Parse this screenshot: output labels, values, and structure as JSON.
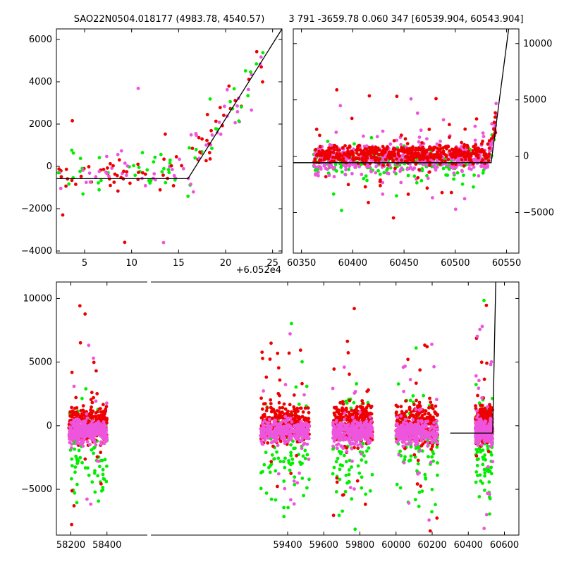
{
  "header": {
    "left_title": "SAO22N0504.018177 (4983.78, 4540.57)",
    "right_title": "3 791 -3659.78 0.060 347 [60539.904, 60543.904]"
  },
  "colors": {
    "green": "#00ee00",
    "red": "#ee0000",
    "pink": "#ee55dd",
    "line": "#000000"
  },
  "chart_data": [
    {
      "id": "zoom",
      "type": "scatter",
      "xlim": [
        2,
        26
      ],
      "ylim": [
        -4100,
        6500
      ],
      "xticks": [
        5,
        10,
        15,
        20,
        25
      ],
      "yticks": [
        -4000,
        -2000,
        0,
        2000,
        4000,
        6000
      ],
      "x_offset_label": "+6.052e4",
      "model_line": {
        "x": [
          2,
          16,
          26
        ],
        "y": [
          -580,
          -580,
          6500
        ]
      }
    },
    {
      "id": "recent",
      "type": "scatter",
      "xlim": [
        60342,
        60562
      ],
      "ylim": [
        -8600,
        11300
      ],
      "xticks": [
        60350,
        60400,
        60450,
        60500,
        60550
      ],
      "yticks": [
        -5000,
        0,
        5000,
        10000
      ],
      "model_line": {
        "x": [
          60342,
          60535,
          60552
        ],
        "y": [
          -580,
          -580,
          11300
        ]
      }
    },
    {
      "id": "full",
      "type": "scatter",
      "xlim": [
        58120,
        60680
      ],
      "ylim": [
        -8600,
        11300
      ],
      "xticks": [
        58200,
        58400,
        59400,
        59600,
        59800,
        60000,
        60200,
        60400,
        60600
      ],
      "yticks": [
        -5000,
        0,
        5000,
        10000
      ],
      "axis_break": true,
      "seasons": [
        [
          58190,
          58400
        ],
        [
          59250,
          59520
        ],
        [
          59650,
          59870
        ],
        [
          60000,
          60230
        ],
        [
          60440,
          60535
        ]
      ],
      "model_line": {
        "x": [
          60300,
          60535,
          60552
        ],
        "y": [
          -580,
          -580,
          11300
        ]
      }
    }
  ]
}
